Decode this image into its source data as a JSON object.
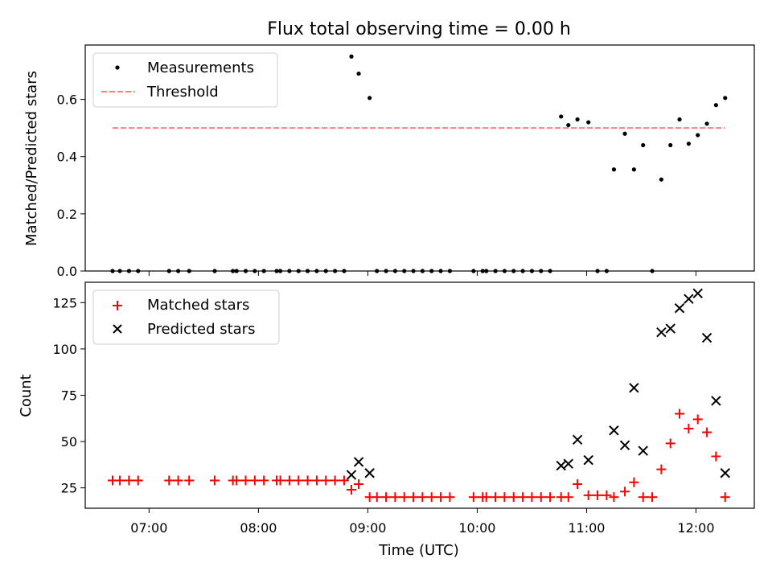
{
  "chart_data": [
    {
      "type": "scatter",
      "title": "Flux total observing time = 0.00 h",
      "xlabel": "",
      "ylabel": "Matched/Predicted stars",
      "xlim": [
        "06:25",
        "12:32"
      ],
      "ylim": [
        0,
        0.79
      ],
      "yticks": [
        0.0,
        0.2,
        0.4,
        0.6
      ],
      "ytick_labels": [
        "0.0",
        "0.2",
        "0.4",
        "0.6"
      ],
      "legend_position": "top-left",
      "series": [
        {
          "name": "Measurements",
          "marker": "dot",
          "color": "#000000",
          "points": [
            {
              "x": "06:40",
              "y": 0
            },
            {
              "x": "06:44",
              "y": 0
            },
            {
              "x": "06:49",
              "y": 0
            },
            {
              "x": "06:54",
              "y": 0
            },
            {
              "x": "07:11",
              "y": 0
            },
            {
              "x": "07:16",
              "y": 0
            },
            {
              "x": "07:22",
              "y": 0
            },
            {
              "x": "07:36",
              "y": 0
            },
            {
              "x": "07:46",
              "y": 0
            },
            {
              "x": "07:48",
              "y": 0
            },
            {
              "x": "07:53",
              "y": 0
            },
            {
              "x": "07:58",
              "y": 0
            },
            {
              "x": "08:03",
              "y": 0
            },
            {
              "x": "08:10",
              "y": 0
            },
            {
              "x": "08:12",
              "y": 0
            },
            {
              "x": "08:17",
              "y": 0
            },
            {
              "x": "08:22",
              "y": 0
            },
            {
              "x": "08:27",
              "y": 0
            },
            {
              "x": "08:32",
              "y": 0
            },
            {
              "x": "08:37",
              "y": 0
            },
            {
              "x": "08:42",
              "y": 0
            },
            {
              "x": "08:47",
              "y": 0
            },
            {
              "x": "08:51",
              "y": 0.75
            },
            {
              "x": "08:55",
              "y": 0.69
            },
            {
              "x": "09:01",
              "y": 0.605
            },
            {
              "x": "09:05",
              "y": 0
            },
            {
              "x": "09:10",
              "y": 0
            },
            {
              "x": "09:15",
              "y": 0
            },
            {
              "x": "09:20",
              "y": 0
            },
            {
              "x": "09:25",
              "y": 0
            },
            {
              "x": "09:30",
              "y": 0
            },
            {
              "x": "09:35",
              "y": 0
            },
            {
              "x": "09:40",
              "y": 0
            },
            {
              "x": "09:45",
              "y": 0
            },
            {
              "x": "09:58",
              "y": 0
            },
            {
              "x": "10:03",
              "y": 0
            },
            {
              "x": "10:05",
              "y": 0
            },
            {
              "x": "10:10",
              "y": 0
            },
            {
              "x": "10:15",
              "y": 0
            },
            {
              "x": "10:20",
              "y": 0
            },
            {
              "x": "10:25",
              "y": 0
            },
            {
              "x": "10:30",
              "y": 0
            },
            {
              "x": "10:35",
              "y": 0
            },
            {
              "x": "10:40",
              "y": 0
            },
            {
              "x": "10:46",
              "y": 0.54
            },
            {
              "x": "10:50",
              "y": 0.51
            },
            {
              "x": "10:55",
              "y": 0.53
            },
            {
              "x": "11:01",
              "y": 0.52
            },
            {
              "x": "11:06",
              "y": 0
            },
            {
              "x": "11:11",
              "y": 0
            },
            {
              "x": "11:15",
              "y": 0.355
            },
            {
              "x": "11:21",
              "y": 0.48
            },
            {
              "x": "11:26",
              "y": 0.355
            },
            {
              "x": "11:31",
              "y": 0.44
            },
            {
              "x": "11:36",
              "y": 0
            },
            {
              "x": "11:41",
              "y": 0.32
            },
            {
              "x": "11:46",
              "y": 0.44
            },
            {
              "x": "11:51",
              "y": 0.53
            },
            {
              "x": "11:56",
              "y": 0.445
            },
            {
              "x": "12:01",
              "y": 0.475
            },
            {
              "x": "12:06",
              "y": 0.515
            },
            {
              "x": "12:11",
              "y": 0.58
            },
            {
              "x": "12:16",
              "y": 0.605
            }
          ]
        },
        {
          "name": "Threshold",
          "line": "dashed",
          "color": "#ff7f7f",
          "points": [
            {
              "x": "06:40",
              "y": 0.5
            },
            {
              "x": "12:16",
              "y": 0.5
            }
          ]
        }
      ]
    },
    {
      "type": "scatter",
      "title": "",
      "xlabel": "Time (UTC)",
      "ylabel": "Count",
      "xlim": [
        "06:25",
        "12:32"
      ],
      "ylim": [
        14,
        136
      ],
      "yticks": [
        25,
        50,
        75,
        100,
        125
      ],
      "ytick_labels": [
        "25",
        "50",
        "75",
        "100",
        "125"
      ],
      "xticks": [
        "07:00",
        "08:00",
        "09:00",
        "10:00",
        "11:00",
        "12:00"
      ],
      "legend_position": "top-left",
      "series": [
        {
          "name": "Matched stars",
          "marker": "plus",
          "color": "#ff0000",
          "points": [
            {
              "x": "06:40",
              "y": 29
            },
            {
              "x": "06:44",
              "y": 29
            },
            {
              "x": "06:49",
              "y": 29
            },
            {
              "x": "06:54",
              "y": 29
            },
            {
              "x": "07:11",
              "y": 29
            },
            {
              "x": "07:16",
              "y": 29
            },
            {
              "x": "07:22",
              "y": 29
            },
            {
              "x": "07:36",
              "y": 29
            },
            {
              "x": "07:46",
              "y": 29
            },
            {
              "x": "07:48",
              "y": 29
            },
            {
              "x": "07:53",
              "y": 29
            },
            {
              "x": "07:58",
              "y": 29
            },
            {
              "x": "08:03",
              "y": 29
            },
            {
              "x": "08:10",
              "y": 29
            },
            {
              "x": "08:12",
              "y": 29
            },
            {
              "x": "08:17",
              "y": 29
            },
            {
              "x": "08:22",
              "y": 29
            },
            {
              "x": "08:27",
              "y": 29
            },
            {
              "x": "08:32",
              "y": 29
            },
            {
              "x": "08:37",
              "y": 29
            },
            {
              "x": "08:42",
              "y": 29
            },
            {
              "x": "08:47",
              "y": 29
            },
            {
              "x": "08:51",
              "y": 24
            },
            {
              "x": "08:55",
              "y": 27
            },
            {
              "x": "09:01",
              "y": 20
            },
            {
              "x": "09:05",
              "y": 20
            },
            {
              "x": "09:10",
              "y": 20
            },
            {
              "x": "09:15",
              "y": 20
            },
            {
              "x": "09:20",
              "y": 20
            },
            {
              "x": "09:25",
              "y": 20
            },
            {
              "x": "09:30",
              "y": 20
            },
            {
              "x": "09:35",
              "y": 20
            },
            {
              "x": "09:40",
              "y": 20
            },
            {
              "x": "09:45",
              "y": 20
            },
            {
              "x": "09:58",
              "y": 20
            },
            {
              "x": "10:03",
              "y": 20
            },
            {
              "x": "10:05",
              "y": 20
            },
            {
              "x": "10:10",
              "y": 20
            },
            {
              "x": "10:15",
              "y": 20
            },
            {
              "x": "10:20",
              "y": 20
            },
            {
              "x": "10:25",
              "y": 20
            },
            {
              "x": "10:30",
              "y": 20
            },
            {
              "x": "10:35",
              "y": 20
            },
            {
              "x": "10:40",
              "y": 20
            },
            {
              "x": "10:46",
              "y": 20
            },
            {
              "x": "10:50",
              "y": 20
            },
            {
              "x": "10:55",
              "y": 27
            },
            {
              "x": "11:01",
              "y": 21
            },
            {
              "x": "11:06",
              "y": 21
            },
            {
              "x": "11:11",
              "y": 21
            },
            {
              "x": "11:15",
              "y": 20
            },
            {
              "x": "11:21",
              "y": 23
            },
            {
              "x": "11:26",
              "y": 28
            },
            {
              "x": "11:31",
              "y": 20
            },
            {
              "x": "11:36",
              "y": 20
            },
            {
              "x": "11:41",
              "y": 35
            },
            {
              "x": "11:46",
              "y": 49
            },
            {
              "x": "11:51",
              "y": 65
            },
            {
              "x": "11:56",
              "y": 57
            },
            {
              "x": "12:01",
              "y": 62
            },
            {
              "x": "12:06",
              "y": 55
            },
            {
              "x": "12:11",
              "y": 42
            },
            {
              "x": "12:16",
              "y": 20
            }
          ]
        },
        {
          "name": "Predicted stars",
          "marker": "x",
          "color": "#000000",
          "points": [
            {
              "x": "08:51",
              "y": 32
            },
            {
              "x": "08:55",
              "y": 39
            },
            {
              "x": "09:01",
              "y": 33
            },
            {
              "x": "10:46",
              "y": 37
            },
            {
              "x": "10:50",
              "y": 38
            },
            {
              "x": "10:55",
              "y": 51
            },
            {
              "x": "11:01",
              "y": 40
            },
            {
              "x": "11:15",
              "y": 56
            },
            {
              "x": "11:21",
              "y": 48
            },
            {
              "x": "11:26",
              "y": 79
            },
            {
              "x": "11:31",
              "y": 45
            },
            {
              "x": "11:41",
              "y": 109
            },
            {
              "x": "11:46",
              "y": 111
            },
            {
              "x": "11:51",
              "y": 122
            },
            {
              "x": "11:56",
              "y": 127
            },
            {
              "x": "12:01",
              "y": 130
            },
            {
              "x": "12:06",
              "y": 106
            },
            {
              "x": "12:11",
              "y": 72
            },
            {
              "x": "12:16",
              "y": 33
            }
          ]
        }
      ]
    }
  ]
}
